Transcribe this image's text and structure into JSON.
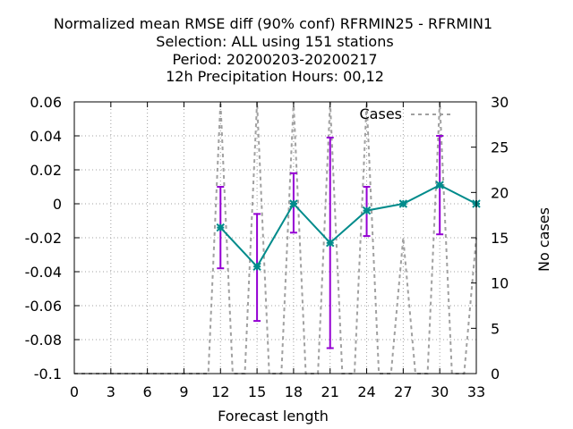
{
  "chart_data": {
    "type": "line",
    "title_lines": [
      "Normalized mean RMSE diff (90% conf) RFRMIN25 - RFRMIN1",
      "Selection: ALL using   151 stations",
      "Period: 20200203-20200217",
      "12h Precipitation   Hours:  00,12"
    ],
    "xlabel": "Forecast length",
    "ylabel": "",
    "y2label": "No cases",
    "xlim": [
      0,
      33
    ],
    "ylim": [
      -0.1,
      0.06
    ],
    "y2lim": [
      0,
      30
    ],
    "xticks": [
      0,
      3,
      6,
      9,
      12,
      15,
      18,
      21,
      24,
      27,
      30,
      33
    ],
    "yticks": [
      -0.1,
      -0.08,
      -0.06,
      -0.04,
      -0.02,
      0,
      0.02,
      0.04,
      0.06
    ],
    "ytick_labels": [
      "-0.1",
      "-0.08",
      "-0.06",
      "-0.04",
      "-0.02",
      "0",
      "0.02",
      "0.04",
      "0.06"
    ],
    "y2ticks": [
      0,
      5,
      10,
      15,
      20,
      25,
      30
    ],
    "grid": true,
    "legend_position": "top-right",
    "series": [
      {
        "name": "",
        "color": "#008b8b",
        "marker_color": "#008b8b",
        "errorbar_color": "#9400d3",
        "x": [
          12,
          15,
          18,
          21,
          24,
          27,
          30,
          33
        ],
        "y": [
          -0.014,
          -0.037,
          0.0,
          -0.023,
          -0.004,
          0.0,
          0.011,
          0.0
        ],
        "err_low": [
          -0.038,
          -0.069,
          -0.017,
          -0.085,
          -0.019,
          0.0,
          -0.018,
          0.0
        ],
        "err_high": [
          0.01,
          -0.006,
          0.018,
          0.039,
          0.01,
          0.0,
          0.04,
          0.0
        ]
      },
      {
        "name": "Cases",
        "axis": "y2",
        "style": "dashed",
        "color": "#a0a0a0",
        "x": [
          0,
          1,
          2,
          3,
          4,
          5,
          6,
          7,
          8,
          9,
          10,
          11,
          12,
          13,
          14,
          15,
          16,
          17,
          18,
          19,
          20,
          21,
          22,
          23,
          24,
          25,
          26,
          27,
          28,
          29,
          30,
          31,
          32,
          33
        ],
        "y": [
          0,
          0,
          0,
          0,
          0,
          0,
          0,
          0,
          0,
          0,
          0,
          0,
          30,
          0,
          0,
          30,
          0,
          0,
          30,
          0,
          0,
          30,
          0,
          0,
          30,
          0,
          0,
          15,
          0,
          0,
          30,
          0,
          0,
          15
        ]
      }
    ]
  }
}
